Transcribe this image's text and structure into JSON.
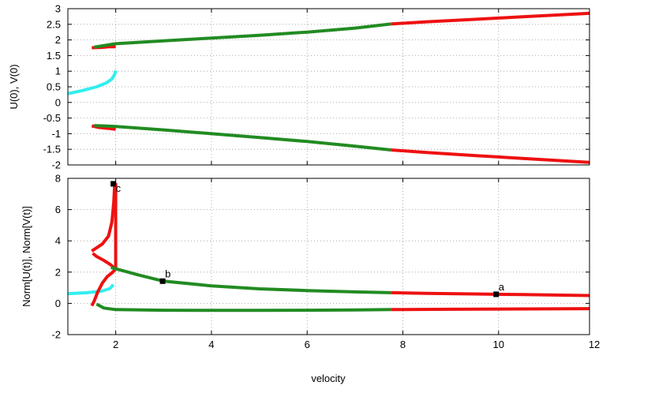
{
  "figure": {
    "xlabel": "velocity"
  },
  "chart_data": [
    {
      "type": "line",
      "ylabel": "U(0), V(0)",
      "xlim": [
        1,
        11.9
      ],
      "ylim": [
        -2,
        3
      ],
      "xticks": [
        2,
        4,
        6,
        8,
        10,
        12
      ],
      "xtick_labels_shown": false,
      "yticks": [
        -2,
        -1.5,
        -1,
        -0.5,
        0,
        0.5,
        1,
        1.5,
        2,
        2.5,
        3
      ],
      "ytick_labels": [
        "-2",
        "-1.5",
        "-1",
        "-0.5",
        "0",
        "0.5",
        "1",
        "1.5",
        "2",
        "2.5",
        "3"
      ],
      "grid": true,
      "colors": {
        "red": "#ee1111",
        "green": "#228b22",
        "cyan": "#33eeee"
      },
      "series": [
        {
          "color": "cyan",
          "points": [
            [
              1.0,
              0.28
            ],
            [
              1.3,
              0.38
            ],
            [
              1.6,
              0.5
            ],
            [
              1.8,
              0.62
            ],
            [
              1.92,
              0.75
            ],
            [
              1.98,
              0.9
            ],
            [
              2.0,
              1.02
            ]
          ]
        },
        {
          "color": "red",
          "points": [
            [
              1.5,
              1.75
            ],
            [
              1.7,
              1.76
            ],
            [
              1.85,
              1.78
            ],
            [
              2.0,
              1.78
            ]
          ]
        },
        {
          "color": "red",
          "points": [
            [
              1.5,
              -0.75
            ],
            [
              1.65,
              -0.8
            ],
            [
              1.85,
              -0.83
            ],
            [
              2.0,
              -0.86
            ]
          ]
        },
        {
          "color": "green",
          "points": [
            [
              1.55,
              1.77
            ],
            [
              2.0,
              1.88
            ],
            [
              3.0,
              1.97
            ],
            [
              4.0,
              2.06
            ],
            [
              5.0,
              2.15
            ],
            [
              6.0,
              2.25
            ],
            [
              7.0,
              2.38
            ],
            [
              7.75,
              2.51
            ]
          ]
        },
        {
          "color": "red",
          "points": [
            [
              7.75,
              2.51
            ],
            [
              8.5,
              2.58
            ],
            [
              9.5,
              2.66
            ],
            [
              10.5,
              2.74
            ],
            [
              11.9,
              2.85
            ]
          ]
        },
        {
          "color": "green",
          "points": [
            [
              1.55,
              -0.74
            ],
            [
              2.0,
              -0.77
            ],
            [
              3.0,
              -0.88
            ],
            [
              4.0,
              -1.0
            ],
            [
              5.0,
              -1.12
            ],
            [
              6.0,
              -1.25
            ],
            [
              7.0,
              -1.4
            ],
            [
              7.75,
              -1.52
            ]
          ]
        },
        {
          "color": "red",
          "points": [
            [
              7.75,
              -1.52
            ],
            [
              8.5,
              -1.6
            ],
            [
              9.5,
              -1.7
            ],
            [
              10.5,
              -1.79
            ],
            [
              11.9,
              -1.92
            ]
          ]
        }
      ]
    },
    {
      "type": "line",
      "ylabel": "Norm[U(t)], Norm[V(t)]",
      "xlim": [
        1,
        11.9
      ],
      "ylim": [
        -2,
        8
      ],
      "xticks": [
        2,
        4,
        6,
        8,
        10,
        12
      ],
      "xtick_labels": [
        "2",
        "4",
        "6",
        "8",
        "10",
        "12"
      ],
      "yticks": [
        -2,
        0,
        2,
        4,
        6,
        8
      ],
      "ytick_labels": [
        "-2",
        "0",
        "2",
        "4",
        "6",
        "8"
      ],
      "grid": true,
      "series": [
        {
          "color": "cyan",
          "points": [
            [
              1.0,
              0.62
            ],
            [
              1.4,
              0.68
            ],
            [
              1.7,
              0.78
            ],
            [
              1.88,
              0.95
            ],
            [
              1.95,
              1.2
            ]
          ]
        },
        {
          "color": "red",
          "points": [
            [
              1.5,
              -0.15
            ],
            [
              1.55,
              0.15
            ],
            [
              1.62,
              0.7
            ],
            [
              1.72,
              1.3
            ],
            [
              1.82,
              1.7
            ],
            [
              1.92,
              1.95
            ],
            [
              1.97,
              2.1
            ],
            [
              2.0,
              2.25
            ],
            [
              2.0,
              7.7
            ]
          ]
        },
        {
          "color": "red",
          "points": [
            [
              1.52,
              3.2
            ],
            [
              1.6,
              3.0
            ],
            [
              1.75,
              2.75
            ],
            [
              1.88,
              2.5
            ],
            [
              1.96,
              2.3
            ]
          ]
        },
        {
          "color": "red",
          "points": [
            [
              1.5,
              3.35
            ],
            [
              1.6,
              3.55
            ],
            [
              1.72,
              3.8
            ],
            [
              1.85,
              4.3
            ],
            [
              1.92,
              5.2
            ],
            [
              1.96,
              6.5
            ],
            [
              1.98,
              7.7
            ]
          ]
        },
        {
          "color": "green",
          "points": [
            [
              1.9,
              2.3
            ],
            [
              2.5,
              1.8
            ],
            [
              3.0,
              1.42
            ],
            [
              4.0,
              1.12
            ],
            [
              5.0,
              0.93
            ],
            [
              6.0,
              0.82
            ],
            [
              7.0,
              0.73
            ],
            [
              7.75,
              0.68
            ]
          ]
        },
        {
          "color": "red",
          "points": [
            [
              7.75,
              0.68
            ],
            [
              8.5,
              0.64
            ],
            [
              9.5,
              0.6
            ],
            [
              10.5,
              0.56
            ],
            [
              11.9,
              0.5
            ]
          ]
        },
        {
          "color": "green",
          "points": [
            [
              1.6,
              -0.05
            ],
            [
              1.75,
              -0.3
            ],
            [
              2.0,
              -0.4
            ],
            [
              3.0,
              -0.44
            ],
            [
              4.0,
              -0.45
            ],
            [
              5.0,
              -0.45
            ],
            [
              6.0,
              -0.44
            ],
            [
              7.0,
              -0.42
            ],
            [
              7.75,
              -0.4
            ]
          ]
        },
        {
          "color": "red",
          "points": [
            [
              7.75,
              -0.4
            ],
            [
              9.0,
              -0.38
            ],
            [
              10.5,
              -0.36
            ],
            [
              11.9,
              -0.34
            ]
          ]
        }
      ],
      "annotations": [
        {
          "label": "a",
          "x": 9.95,
          "y": 0.58
        },
        {
          "label": "b",
          "x": 2.98,
          "y": 1.42
        },
        {
          "label": "c",
          "x": 1.95,
          "y": 7.65
        }
      ]
    }
  ]
}
